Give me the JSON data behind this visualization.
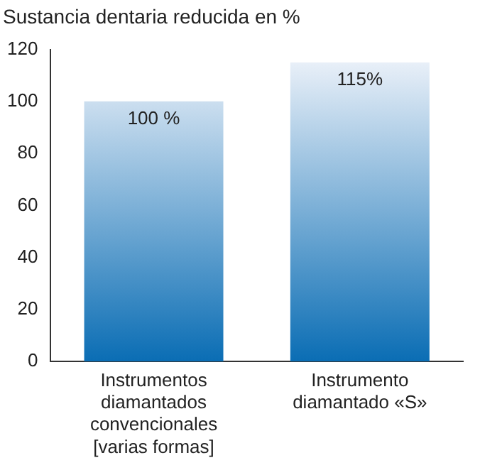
{
  "chart_data": {
    "type": "bar",
    "title": "Sustancia dentaria reducida en %",
    "categories": [
      "Instrumentos diamantados convencionales [varias formas]",
      "Instrumento diamantado «S»"
    ],
    "values": [
      100,
      115
    ],
    "value_labels": [
      "100 %",
      "115%"
    ],
    "color": "#0a6db4",
    "ylim": [
      0,
      120
    ],
    "yticks": [
      0,
      20,
      40,
      60,
      80,
      100,
      120
    ],
    "grid": false,
    "legend": false
  }
}
